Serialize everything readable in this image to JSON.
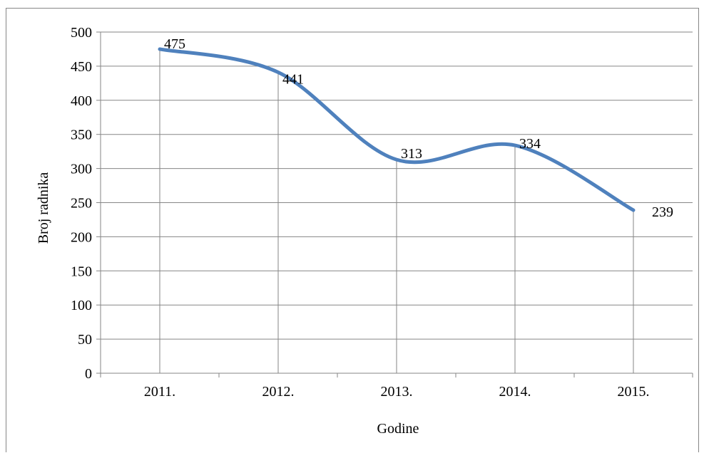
{
  "chart_data": {
    "type": "line",
    "title": "",
    "xlabel": "Godine",
    "ylabel": "Broj radnika",
    "categories": [
      "2011.",
      "2012.",
      "2013.",
      "2014.",
      "2015."
    ],
    "series": [
      {
        "values": [
          475,
          441,
          313,
          334,
          239
        ],
        "color": "#4f81bd"
      }
    ],
    "data_labels": [
      "475",
      "441",
      "313",
      "334",
      "239"
    ],
    "ylim": [
      0,
      500
    ],
    "yticks": [
      0,
      50,
      100,
      150,
      200,
      250,
      300,
      350,
      400,
      450,
      500
    ],
    "ytick_labels": [
      "0",
      "50",
      "100",
      "150",
      "200",
      "250",
      "300",
      "350",
      "400",
      "450",
      "500"
    ],
    "grid": true,
    "vertical_drop_lines": true,
    "smooth_line": true,
    "legend": "none"
  }
}
